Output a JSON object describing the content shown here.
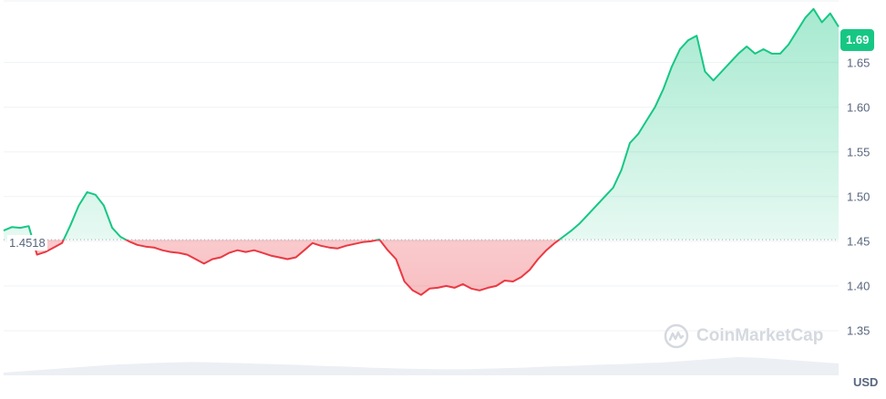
{
  "chart_data": {
    "type": "area",
    "title": "",
    "xlabel": "",
    "ylabel": "",
    "currency_label": "USD",
    "current_price_label": "1.69",
    "reference_price_label": "1.4518",
    "reference_price": 1.4518,
    "ylim": [
      1.3,
      1.72
    ],
    "y_ticks": [
      1.35,
      1.4,
      1.45,
      1.5,
      1.55,
      1.6,
      1.65
    ],
    "y_tick_labels": [
      "1.35",
      "1.40",
      "1.45",
      "1.50",
      "1.55",
      "1.60",
      "1.65"
    ],
    "grid": true,
    "series": [
      {
        "x": [
          0,
          1,
          2,
          3,
          4,
          5,
          6,
          7,
          8,
          9,
          10,
          11,
          12,
          13,
          14,
          15,
          16,
          17,
          18,
          19,
          20,
          21,
          22,
          23,
          24,
          25,
          26,
          27,
          28,
          29,
          30,
          31,
          32,
          33,
          34,
          35,
          36,
          37,
          38,
          39,
          40,
          41,
          42,
          43,
          44,
          45,
          46,
          47,
          48,
          49,
          50,
          51,
          52,
          53,
          54,
          55,
          56,
          57,
          58,
          59,
          60,
          61,
          62,
          63,
          64,
          65,
          66,
          67,
          68,
          69,
          70,
          71,
          72,
          73,
          74,
          75,
          76,
          77,
          78,
          79,
          80,
          81,
          82,
          83,
          84,
          85,
          86,
          87,
          88,
          89,
          90,
          91,
          92,
          93,
          94,
          95,
          96,
          97,
          98,
          99,
          100
        ],
        "values": [
          1.462,
          1.466,
          1.465,
          1.467,
          1.435,
          1.438,
          1.443,
          1.448,
          1.468,
          1.49,
          1.505,
          1.502,
          1.49,
          1.465,
          1.455,
          1.45,
          1.446,
          1.444,
          1.443,
          1.44,
          1.438,
          1.437,
          1.435,
          1.43,
          1.425,
          1.43,
          1.432,
          1.437,
          1.44,
          1.438,
          1.44,
          1.437,
          1.434,
          1.432,
          1.43,
          1.432,
          1.44,
          1.448,
          1.445,
          1.443,
          1.442,
          1.445,
          1.447,
          1.449,
          1.45,
          1.452,
          1.44,
          1.43,
          1.405,
          1.395,
          1.39,
          1.397,
          1.398,
          1.4,
          1.398,
          1.402,
          1.397,
          1.395,
          1.398,
          1.4,
          1.406,
          1.405,
          1.41,
          1.418,
          1.43,
          1.44,
          1.448,
          1.455,
          1.462,
          1.47,
          1.48,
          1.49,
          1.5,
          1.51,
          1.53,
          1.56,
          1.57,
          1.585,
          1.6,
          1.62,
          1.645,
          1.665,
          1.675,
          1.68,
          1.64,
          1.63,
          1.64,
          1.65,
          1.66,
          1.668,
          1.66,
          1.665,
          1.66,
          1.66,
          1.67,
          1.685,
          1.7,
          1.71,
          1.695,
          1.705,
          1.69
        ]
      }
    ],
    "volume": [
      0.15,
      0.2,
      0.25,
      0.3,
      0.35,
      0.4,
      0.45,
      0.5,
      0.55,
      0.6,
      0.62,
      0.65,
      0.68,
      0.7,
      0.72,
      0.73,
      0.72,
      0.7,
      0.68,
      0.66,
      0.64,
      0.62,
      0.6,
      0.58,
      0.55,
      0.52,
      0.5,
      0.48,
      0.45,
      0.42,
      0.4,
      0.38,
      0.36,
      0.35,
      0.34,
      0.33,
      0.33,
      0.34,
      0.36,
      0.38,
      0.4,
      0.42,
      0.45,
      0.48,
      0.5,
      0.52,
      0.55,
      0.58,
      0.6,
      0.62,
      0.65,
      0.68,
      0.7,
      0.75,
      0.8,
      0.85,
      0.9,
      0.95,
      1.0,
      0.98,
      0.95,
      0.9,
      0.85,
      0.8,
      0.75,
      0.7,
      0.65
    ],
    "colors": {
      "up": "#16c784",
      "down": "#ea3943",
      "up_fill": "#16c784",
      "down_fill": "#ea3943",
      "grid": "#eff2f5",
      "ref_line": "#a0a7b3",
      "volume": "#eceff3"
    }
  },
  "watermark": {
    "text": "CoinMarketCap",
    "icon": "coinmarketcap-logo-icon"
  }
}
